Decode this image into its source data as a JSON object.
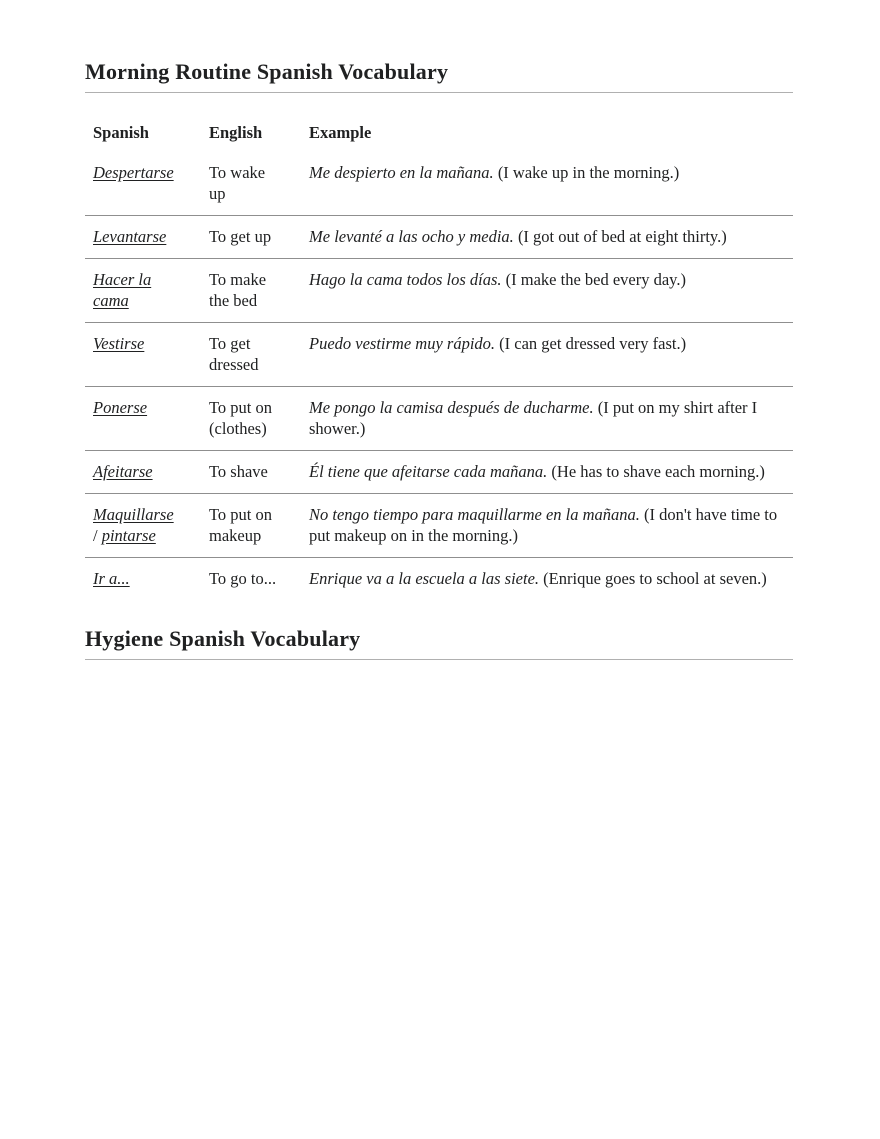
{
  "document": {
    "sections": [
      {
        "title": "Morning Routine Spanish Vocabulary"
      },
      {
        "title": "Hygiene Spanish Vocabulary"
      }
    ]
  },
  "vocab_table": {
    "headers": [
      "Spanish",
      "English",
      "Example"
    ],
    "rows": [
      {
        "spanish_terms": [
          "Despertarse"
        ],
        "english": "To wake up",
        "example_spanish": "Me despierto en la mañana.",
        "example_translation": "(I wake up in the morning.)"
      },
      {
        "spanish_terms": [
          "Levantarse"
        ],
        "english": "To get up",
        "example_spanish": "Me levanté a las ocho y media.",
        "example_translation": "(I got out of bed at eight thirty.)"
      },
      {
        "spanish_terms": [
          "Hacer la cama"
        ],
        "english": "To make the bed",
        "example_spanish": "Hago la cama todos los días.",
        "example_translation": "(I make the bed every day.)"
      },
      {
        "spanish_terms": [
          "Vestirse"
        ],
        "english": "To get dressed",
        "example_spanish": "Puedo vestirme muy rápido.",
        "example_translation": "(I can get dressed very fast.)"
      },
      {
        "spanish_terms": [
          "Ponerse"
        ],
        "english": "To put on (clothes)",
        "example_spanish": "Me pongo la camisa después de ducharme.",
        "example_translation": "(I put on my shirt after I shower.)"
      },
      {
        "spanish_terms": [
          "Afeitarse"
        ],
        "english": "To shave",
        "example_spanish": "Él tiene que afeitarse cada mañana.",
        "example_translation": "(He has to shave each morning.)"
      },
      {
        "spanish_terms": [
          "Maquillarse",
          "pintarse"
        ],
        "english": "To put on makeup",
        "example_spanish": "No tengo tiempo para maquillarme en la mañana.",
        "example_translation": "(I don't have time to put makeup on in the morning.)"
      },
      {
        "spanish_terms": [
          "Ir a..."
        ],
        "english": "To go to...",
        "example_spanish": "Enrique va a la escuela a las siete.",
        "example_translation": "(Enrique goes to school at seven.)"
      }
    ],
    "term_separator": "/ "
  },
  "appearance": {
    "text_color": "#202122",
    "heading_rule_color": "#b0b0b0",
    "row_divider_color": "#8f8f8f",
    "background_color": "#ffffff"
  }
}
